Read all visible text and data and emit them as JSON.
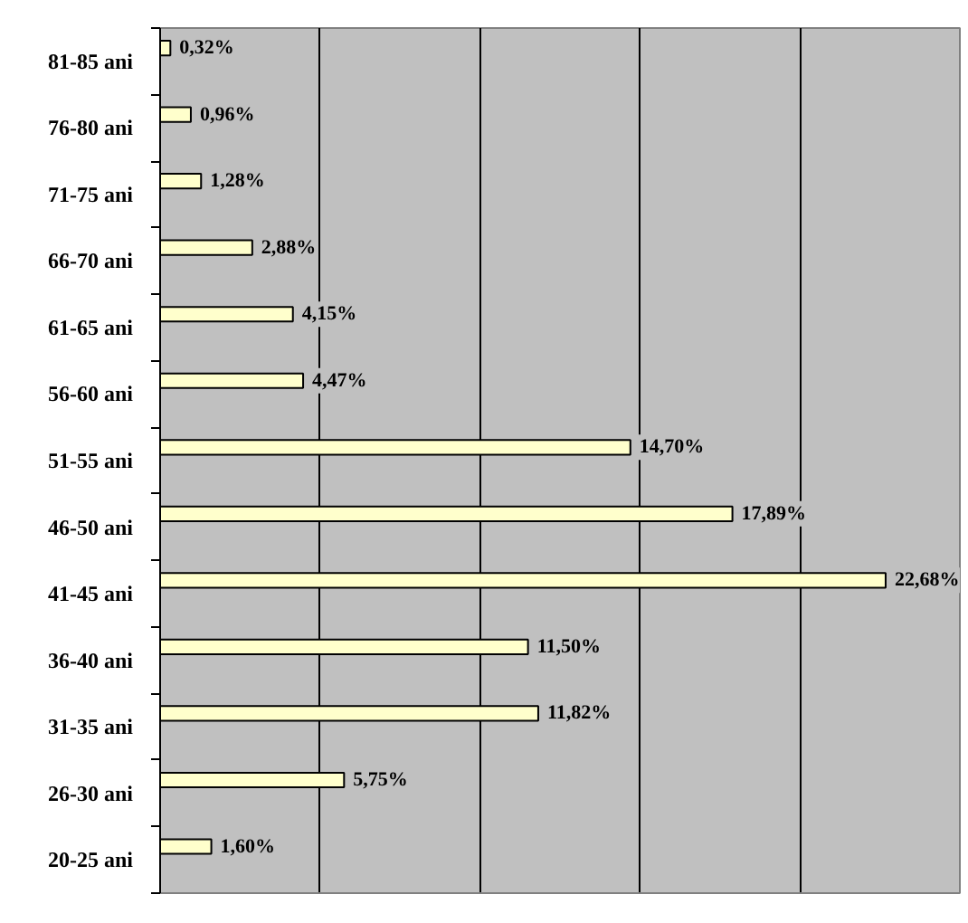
{
  "chart_data": {
    "type": "bar",
    "orientation": "horizontal",
    "categories": [
      "81-85 ani",
      "76-80 ani",
      "71-75 ani",
      "66-70 ani",
      "61-65 ani",
      "56-60 ani",
      "51-55 ani",
      "46-50 ani",
      "41-45 ani",
      "36-40 ani",
      "31-35 ani",
      "26-30 ani",
      "20-25 ani"
    ],
    "values": [
      0.32,
      0.96,
      1.28,
      2.88,
      4.15,
      4.47,
      14.7,
      17.89,
      22.68,
      11.5,
      11.82,
      5.75,
      1.6
    ],
    "value_labels": [
      "0,32%",
      "0,96%",
      "1,28%",
      "2,88%",
      "4,15%",
      "4,47%",
      "14,70%",
      "17,89%",
      "22,68%",
      "11,50%",
      "11,82%",
      "5,75%",
      "1,60%"
    ],
    "color": "#ffffcc",
    "xlim": [
      0,
      25
    ],
    "xticks": [
      {
        "value": 5,
        "label": null
      },
      {
        "value": 10,
        "label": null
      },
      {
        "value": 15,
        "label": null
      },
      {
        "value": 20,
        "label": null
      }
    ],
    "grid": "x",
    "tick_labels": "y"
  }
}
